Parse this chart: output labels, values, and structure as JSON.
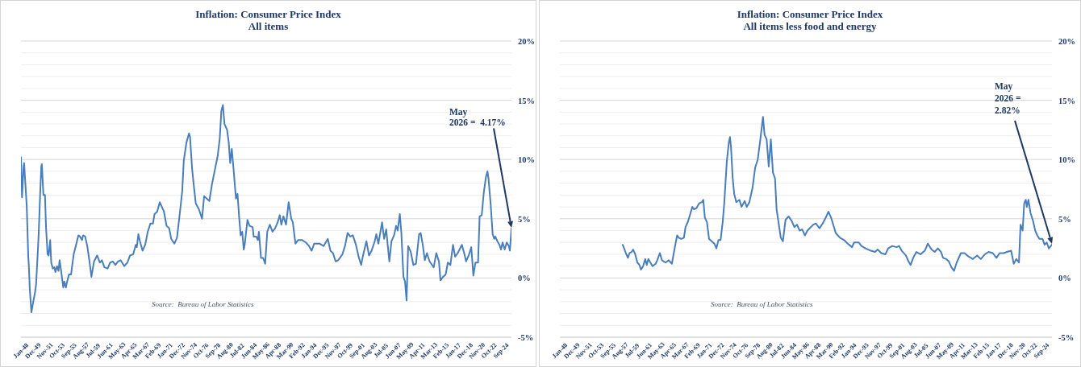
{
  "chart_data": [
    {
      "type": "line",
      "title": "Inflation: Consumer Price Index",
      "subtitle": "All items",
      "x": [
        "1948-01",
        "1948-03",
        "1948-06",
        "1948-07",
        "1948-12",
        "1949-03",
        "1949-04",
        "1949-06",
        "1949-09",
        "1950-01",
        "1950-04",
        "1950-06",
        "1950-09",
        "1950-11",
        "1951-02",
        "1951-04",
        "1951-05",
        "1951-08",
        "1951-11",
        "1952-01",
        "1952-04",
        "1952-06",
        "1952-09",
        "1952-11",
        "1953-02",
        "1953-05",
        "1953-07",
        "1953-10",
        "1954-01",
        "1954-03",
        "1954-06",
        "1954-10",
        "1954-12",
        "1955-03",
        "1955-05",
        "1955-09",
        "1956-01",
        "1956-06",
        "1956-10",
        "1957-03",
        "1957-06",
        "1957-10",
        "1957-12",
        "1958-04",
        "1958-08",
        "1958-12",
        "1959-04",
        "1959-09",
        "1960-03",
        "1960-08",
        "1960-12",
        "1961-05",
        "1961-11",
        "1962-04",
        "1962-09",
        "1963-02",
        "1963-07",
        "1963-12",
        "1964-07",
        "1965-01",
        "1965-06",
        "1965-12",
        "1966-05",
        "1966-07",
        "1966-10",
        "1967-01",
        "1967-06",
        "1967-11",
        "1968-04",
        "1968-09",
        "1969-02",
        "1969-05",
        "1969-10",
        "1970-03",
        "1970-06",
        "1970-11",
        "1971-04",
        "1971-09",
        "1972-01",
        "1972-07",
        "1972-12",
        "1973-06",
        "1973-10",
        "1974-01",
        "1974-06",
        "1974-11",
        "1975-01",
        "1975-05",
        "1975-08",
        "1975-12",
        "1976-06",
        "1976-12",
        "1977-04",
        "1977-09",
        "1978-02",
        "1978-07",
        "1978-12",
        "1979-06",
        "1979-10",
        "1980-01",
        "1980-04",
        "1980-07",
        "1980-12",
        "1981-03",
        "1981-06",
        "1981-09",
        "1981-12",
        "1982-05",
        "1982-08",
        "1982-11",
        "1983-02",
        "1983-05",
        "1983-08",
        "1983-10",
        "1984-03",
        "1984-07",
        "1985-01",
        "1985-03",
        "1985-08",
        "1985-11",
        "1986-01",
        "1986-05",
        "1986-09",
        "1987-01",
        "1987-05",
        "1987-10",
        "1988-03",
        "1988-08",
        "1989-01",
        "1989-05",
        "1989-08",
        "1989-12",
        "1990-05",
        "1990-10",
        "1991-03",
        "1991-06",
        "1991-11",
        "1992-04",
        "1992-12",
        "1993-07",
        "1994-01",
        "1994-06",
        "1994-11",
        "1995-09",
        "1996-05",
        "1997-01",
        "1997-06",
        "1997-11",
        "1998-04",
        "1998-09",
        "1999-05",
        "1999-10",
        "2000-03",
        "2000-08",
        "2001-01",
        "2001-07",
        "2001-12",
        "2002-05",
        "2002-08",
        "2003-03",
        "2003-08",
        "2004-01",
        "2004-07",
        "2004-10",
        "2005-02",
        "2005-09",
        "2006-01",
        "2006-05",
        "2006-08",
        "2006-11",
        "2007-03",
        "2007-08",
        "2007-12",
        "2008-03",
        "2008-07",
        "2008-10",
        "2009-02",
        "2009-05",
        "2009-08",
        "2009-11",
        "2010-04",
        "2010-09",
        "2011-02",
        "2011-08",
        "2011-11",
        "2012-03",
        "2012-07",
        "2012-11",
        "2013-04",
        "2013-12",
        "2014-05",
        "2014-10",
        "2015-01",
        "2015-06",
        "2015-11",
        "2016-03",
        "2016-08",
        "2017-01",
        "2017-05",
        "2017-10",
        "2018-06",
        "2018-11",
        "2019-02",
        "2019-07",
        "2019-12",
        "2020-04",
        "2020-08",
        "2021-01",
        "2021-04",
        "2021-08",
        "2021-12",
        "2022-04",
        "2022-07",
        "2022-09",
        "2023-01",
        "2023-05",
        "2023-08",
        "2023-10",
        "2024-02",
        "2024-06",
        "2024-09",
        "2024-12",
        "2025-04",
        "2025-08",
        "2025-12",
        "2026-02",
        "2026-05"
      ],
      "series": [
        {
          "color": "#4a7ebb",
          "values": [
            10.2,
            6.8,
            9.4,
            9.7,
            6.1,
            1.8,
            1.1,
            -1.0,
            -2.9,
            -1.9,
            -1.2,
            -0.5,
            2.0,
            3.8,
            7.4,
            9.4,
            9.6,
            7.0,
            7.0,
            4.3,
            2.0,
            1.9,
            3.2,
            1.3,
            0.8,
            0.9,
            0.5,
            1.0,
            0.6,
            1.5,
            0.6,
            -0.8,
            -0.3,
            -0.8,
            -0.4,
            0.3,
            0.3,
            2.0,
            2.7,
            3.6,
            3.5,
            3.2,
            3.6,
            3.5,
            2.7,
            1.5,
            0.1,
            1.4,
            1.9,
            1.3,
            1.5,
            0.9,
            0.8,
            1.3,
            1.4,
            1.1,
            1.4,
            1.5,
            1.0,
            1.3,
            1.9,
            2.0,
            2.8,
            2.6,
            3.7,
            3.1,
            2.3,
            2.8,
            3.9,
            4.6,
            4.6,
            5.4,
            5.6,
            6.4,
            6.1,
            5.6,
            4.4,
            4.2,
            3.3,
            2.9,
            3.4,
            5.7,
            7.3,
            9.9,
            11.4,
            12.2,
            11.9,
            9.2,
            7.9,
            6.3,
            5.8,
            5.0,
            6.9,
            6.7,
            6.5,
            7.9,
            9.0,
            10.3,
            11.8,
            14.1,
            14.6,
            13.0,
            12.5,
            11.5,
            9.7,
            10.9,
            9.4,
            6.7,
            7.1,
            5.2,
            3.6,
            3.9,
            2.4,
            2.9,
            4.9,
            4.4,
            4.3,
            3.5,
            3.5,
            3.2,
            3.9,
            1.7,
            1.7,
            1.2,
            3.9,
            4.5,
            3.9,
            4.2,
            4.7,
            5.3,
            4.5,
            5.2,
            4.5,
            6.4,
            5.0,
            4.7,
            2.9,
            3.2,
            3.2,
            3.0,
            2.7,
            2.3,
            2.9,
            2.9,
            2.7,
            3.3,
            2.3,
            2.1,
            1.4,
            1.5,
            2.0,
            2.7,
            3.8,
            3.5,
            3.6,
            2.8,
            1.8,
            1.1,
            1.8,
            3.1,
            1.9,
            2.3,
            3.1,
            3.7,
            2.9,
            4.7,
            3.3,
            4.1,
            2.7,
            1.4,
            3.1,
            3.6,
            4.4,
            4.0,
            5.4,
            3.8,
            0.1,
            -0.3,
            -1.9,
            2.7,
            2.2,
            1.1,
            1.2,
            3.7,
            3.8,
            2.8,
            1.5,
            2.1,
            1.4,
            0.9,
            2.1,
            1.4,
            -0.2,
            0.1,
            0.3,
            1.3,
            1.1,
            2.8,
            1.8,
            2.1,
            2.8,
            2.0,
            1.4,
            1.9,
            2.6,
            0.2,
            1.3,
            1.3,
            5.2,
            5.3,
            7.2,
            8.5,
            9.0,
            8.4,
            6.3,
            3.7,
            3.3,
            3.5,
            3.1,
            2.8,
            2.4,
            3.0,
            2.4,
            3.0,
            2.7,
            2.3,
            4.17
          ]
        }
      ],
      "xlim": [
        "1948-01",
        "2026-05"
      ],
      "xticks": [
        {
          "value": "1948-01",
          "label": "Jan-48"
        },
        {
          "value": "1949-12",
          "label": "Dec-49"
        },
        {
          "value": "1951-11",
          "label": "Nov-51"
        },
        {
          "value": "1953-10",
          "label": "Oct-53"
        },
        {
          "value": "1955-09",
          "label": "Sep-55"
        },
        {
          "value": "1957-08",
          "label": "Aug-57"
        },
        {
          "value": "1959-07",
          "label": "Jul-59"
        },
        {
          "value": "1961-06",
          "label": "Jun-61"
        },
        {
          "value": "1963-05",
          "label": "May-63"
        },
        {
          "value": "1965-04",
          "label": "Apr-65"
        },
        {
          "value": "1967-03",
          "label": "Mar-67"
        },
        {
          "value": "1969-02",
          "label": "Feb-69"
        },
        {
          "value": "1971-01",
          "label": "Jan-71"
        },
        {
          "value": "1972-12",
          "label": "Dec-72"
        },
        {
          "value": "1974-11",
          "label": "Nov-74"
        },
        {
          "value": "1976-10",
          "label": "Oct-76"
        },
        {
          "value": "1978-09",
          "label": "Sep-78"
        },
        {
          "value": "1980-08",
          "label": "Aug-80"
        },
        {
          "value": "1982-07",
          "label": "Jul-82"
        },
        {
          "value": "1984-06",
          "label": "Jun-84"
        },
        {
          "value": "1986-05",
          "label": "May-86"
        },
        {
          "value": "1988-04",
          "label": "Apr-88"
        },
        {
          "value": "1990-03",
          "label": "Mar-90"
        },
        {
          "value": "1992-02",
          "label": "Feb-92"
        },
        {
          "value": "1994-01",
          "label": "Jan-94"
        },
        {
          "value": "1995-12",
          "label": "Dec-95"
        },
        {
          "value": "1997-11",
          "label": "Nov-97"
        },
        {
          "value": "1999-10",
          "label": "Oct-99"
        },
        {
          "value": "2001-09",
          "label": "Sep-01"
        },
        {
          "value": "2003-08",
          "label": "Aug-03"
        },
        {
          "value": "2005-07",
          "label": "Jul-05"
        },
        {
          "value": "2007-06",
          "label": "Jun-07"
        },
        {
          "value": "2009-05",
          "label": "May-09"
        },
        {
          "value": "2011-04",
          "label": "Apr-11"
        },
        {
          "value": "2013-03",
          "label": "Mar-13"
        },
        {
          "value": "2015-02",
          "label": "Feb-15"
        },
        {
          "value": "2017-01",
          "label": "Jan-17"
        },
        {
          "value": "2018-12",
          "label": "Dec-18"
        },
        {
          "value": "2020-11",
          "label": "Nov-20"
        },
        {
          "value": "2022-10",
          "label": "Oct-22"
        },
        {
          "value": "2024-09",
          "label": "Sep-24"
        }
      ],
      "ylim": [
        -5,
        20
      ],
      "yticks": [
        {
          "value": -5,
          "label": "-5%"
        },
        {
          "value": -4,
          "label": null
        },
        {
          "value": -3,
          "label": null
        },
        {
          "value": -2,
          "label": null
        },
        {
          "value": -1,
          "label": null
        },
        {
          "value": 0,
          "label": "0%"
        },
        {
          "value": 1,
          "label": null
        },
        {
          "value": 2,
          "label": null
        },
        {
          "value": 3,
          "label": null
        },
        {
          "value": 4,
          "label": null
        },
        {
          "value": 5,
          "label": "5%"
        },
        {
          "value": 6,
          "label": null
        },
        {
          "value": 7,
          "label": null
        },
        {
          "value": 8,
          "label": null
        },
        {
          "value": 9,
          "label": null
        },
        {
          "value": 10,
          "label": "10%"
        },
        {
          "value": 11,
          "label": null
        },
        {
          "value": 12,
          "label": null
        },
        {
          "value": 13,
          "label": null
        },
        {
          "value": 14,
          "label": null
        },
        {
          "value": 15,
          "label": "15%"
        },
        {
          "value": 16,
          "label": null
        },
        {
          "value": 17,
          "label": null
        },
        {
          "value": 18,
          "label": null
        },
        {
          "value": 19,
          "label": null
        },
        {
          "value": 20,
          "label": "20%"
        }
      ],
      "grid": "y",
      "annotations": [
        {
          "text": "May\n2026 =  4.17%",
          "x": "2026-05",
          "y": 4.17
        },
        "Source:  Bureau of Labor Statistics"
      ]
    },
    {
      "type": "line",
      "title": "Inflation: Consumer Price Index",
      "subtitle": "All items less food and energy",
      "x": [
        "1958-01",
        "1958-03",
        "1958-07",
        "1958-11",
        "1959-02",
        "1959-06",
        "1959-09",
        "1960-01",
        "1960-05",
        "1960-09",
        "1960-12",
        "1961-04",
        "1961-08",
        "1961-11",
        "1962-02",
        "1962-06",
        "1962-10",
        "1963-04",
        "1963-07",
        "1963-12",
        "1964-04",
        "1964-11",
        "1965-05",
        "1965-11",
        "1966-03",
        "1966-09",
        "1966-12",
        "1967-05",
        "1967-10",
        "1968-01",
        "1968-06",
        "1968-10",
        "1969-02",
        "1969-05",
        "1969-10",
        "1970-03",
        "1970-08",
        "1970-11",
        "1971-02",
        "1971-06",
        "1971-10",
        "1972-03",
        "1972-08",
        "1972-12",
        "1973-04",
        "1973-08",
        "1973-12",
        "1974-03",
        "1974-08",
        "1974-12",
        "1975-02",
        "1975-04",
        "1975-07",
        "1975-10",
        "1976-02",
        "1976-08",
        "1976-12",
        "1977-06",
        "1977-10",
        "1978-03",
        "1978-09",
        "1979-02",
        "1979-07",
        "1979-12",
        "1980-05",
        "1980-08",
        "1980-12",
        "1981-04",
        "1981-08",
        "1981-12",
        "1982-04",
        "1982-07",
        "1982-11",
        "1983-03",
        "1983-07",
        "1983-12",
        "1984-06",
        "1984-12",
        "1985-05",
        "1985-10",
        "1986-03",
        "1986-08",
        "1987-01",
        "1987-06",
        "1988-05",
        "1988-10",
        "1989-05",
        "1989-11",
        "1990-05",
        "1990-10",
        "1991-03",
        "1991-12",
        "1992-08",
        "1993-04",
        "1993-11",
        "1994-07",
        "1994-11",
        "1995-08",
        "1996-01",
        "1996-09",
        "1997-07",
        "1998-03",
        "1998-08",
        "1999-03",
        "1999-11",
        "2000-04",
        "2000-12",
        "2001-08",
        "2002-01",
        "2002-06",
        "2003-02",
        "2003-07",
        "2003-11",
        "2004-04",
        "2004-10",
        "2005-06",
        "2006-02",
        "2006-08",
        "2007-03",
        "2007-09",
        "2008-03",
        "2008-09",
        "2009-01",
        "2009-07",
        "2009-12",
        "2010-05",
        "2010-10",
        "2011-03",
        "2011-11",
        "2012-06",
        "2013-02",
        "2013-10",
        "2014-06",
        "2015-01",
        "2015-09",
        "2016-04",
        "2016-12",
        "2017-07",
        "2018-01",
        "2018-09",
        "2019-03",
        "2019-11",
        "2020-04",
        "2020-09",
        "2021-02",
        "2021-05",
        "2021-09",
        "2021-12",
        "2022-03",
        "2022-05",
        "2022-08",
        "2022-12",
        "2023-05",
        "2023-09",
        "2024-01",
        "2024-05",
        "2024-11",
        "2025-03",
        "2025-07",
        "2025-11",
        "2026-05"
      ],
      "series": [
        {
          "color": "#4a7ebb",
          "values": [
            2.8,
            2.6,
            2.1,
            1.7,
            2.1,
            2.2,
            2.4,
            2.0,
            1.3,
            1.1,
            0.7,
            1.0,
            1.6,
            1.1,
            1.6,
            1.3,
            1.0,
            1.2,
            1.5,
            2.1,
            1.5,
            1.3,
            1.5,
            1.2,
            2.2,
            3.6,
            3.4,
            3.3,
            3.4,
            4.3,
            4.8,
            5.4,
            6.0,
            5.8,
            5.9,
            6.3,
            6.4,
            6.6,
            5.1,
            4.7,
            3.3,
            3.1,
            2.9,
            2.5,
            3.2,
            3.2,
            4.7,
            6.3,
            9.9,
            11.5,
            11.9,
            11.0,
            8.5,
            7.1,
            6.4,
            6.6,
            6.0,
            6.5,
            6.0,
            6.4,
            7.6,
            9.3,
            10.0,
            11.7,
            13.6,
            12.1,
            11.7,
            9.4,
            11.7,
            8.9,
            8.4,
            5.8,
            4.6,
            3.4,
            3.1,
            4.9,
            5.2,
            4.8,
            4.3,
            4.5,
            4.0,
            4.1,
            3.6,
            4.0,
            4.5,
            4.6,
            4.2,
            4.6,
            5.1,
            5.6,
            5.1,
            3.8,
            3.4,
            3.2,
            2.9,
            2.6,
            3.0,
            3.0,
            2.7,
            2.5,
            2.3,
            2.2,
            2.4,
            2.1,
            2.0,
            2.5,
            2.7,
            2.6,
            2.7,
            2.3,
            1.9,
            1.4,
            1.1,
            1.7,
            2.2,
            2.0,
            2.3,
            2.9,
            2.4,
            2.2,
            2.5,
            2.2,
            1.7,
            1.6,
            1.4,
            0.9,
            0.6,
            1.3,
            2.1,
            2.1,
            1.8,
            1.6,
            1.9,
            1.6,
            2.0,
            2.2,
            2.1,
            1.7,
            2.1,
            2.1,
            2.2,
            2.3,
            1.2,
            1.6,
            1.3,
            4.5,
            4.0,
            6.3,
            6.6,
            6.0,
            6.6,
            5.5,
            4.8,
            4.0,
            3.6,
            3.3,
            3.3,
            2.8,
            3.0,
            2.5,
            2.82
          ]
        }
      ],
      "xlim": [
        "1948-01",
        "2026-05"
      ],
      "xticks": [
        {
          "value": "1948-01",
          "label": "Jan-48"
        },
        {
          "value": "1949-12",
          "label": "Dec-49"
        },
        {
          "value": "1951-11",
          "label": "Nov-51"
        },
        {
          "value": "1953-10",
          "label": "Oct-53"
        },
        {
          "value": "1955-09",
          "label": "Sep-55"
        },
        {
          "value": "1957-08",
          "label": "Aug-57"
        },
        {
          "value": "1959-07",
          "label": "Jul-59"
        },
        {
          "value": "1961-06",
          "label": "Jun-61"
        },
        {
          "value": "1963-05",
          "label": "May-63"
        },
        {
          "value": "1965-04",
          "label": "Apr-65"
        },
        {
          "value": "1967-03",
          "label": "Mar-67"
        },
        {
          "value": "1969-02",
          "label": "Feb-69"
        },
        {
          "value": "1971-01",
          "label": "Jan-71"
        },
        {
          "value": "1972-12",
          "label": "Dec-72"
        },
        {
          "value": "1974-11",
          "label": "Nov-74"
        },
        {
          "value": "1976-10",
          "label": "Oct-76"
        },
        {
          "value": "1978-09",
          "label": "Sep-78"
        },
        {
          "value": "1980-08",
          "label": "Aug-80"
        },
        {
          "value": "1982-07",
          "label": "Jul-82"
        },
        {
          "value": "1984-06",
          "label": "Jun-84"
        },
        {
          "value": "1986-05",
          "label": "May-86"
        },
        {
          "value": "1988-04",
          "label": "Apr-88"
        },
        {
          "value": "1990-03",
          "label": "Mar-90"
        },
        {
          "value": "1992-02",
          "label": "Feb-92"
        },
        {
          "value": "1994-01",
          "label": "Jan-94"
        },
        {
          "value": "1995-12",
          "label": "Dec-95"
        },
        {
          "value": "1997-11",
          "label": "Nov-97"
        },
        {
          "value": "1999-10",
          "label": "Oct-99"
        },
        {
          "value": "2001-09",
          "label": "Sep-01"
        },
        {
          "value": "2003-08",
          "label": "Aug-03"
        },
        {
          "value": "2005-07",
          "label": "Jul-05"
        },
        {
          "value": "2007-06",
          "label": "Jun-07"
        },
        {
          "value": "2009-05",
          "label": "May-09"
        },
        {
          "value": "2011-04",
          "label": "Apr-11"
        },
        {
          "value": "2013-03",
          "label": "Mar-13"
        },
        {
          "value": "2015-02",
          "label": "Feb-15"
        },
        {
          "value": "2017-01",
          "label": "Jan-17"
        },
        {
          "value": "2018-12",
          "label": "Dec-18"
        },
        {
          "value": "2020-11",
          "label": "Nov-20"
        },
        {
          "value": "2022-10",
          "label": "Oct-22"
        },
        {
          "value": "2024-09",
          "label": "Sep-24"
        }
      ],
      "ylim": [
        -5,
        20
      ],
      "yticks": [
        {
          "value": -5,
          "label": "-5%"
        },
        {
          "value": -4,
          "label": null
        },
        {
          "value": -3,
          "label": null
        },
        {
          "value": -2,
          "label": null
        },
        {
          "value": -1,
          "label": null
        },
        {
          "value": 0,
          "label": "0%"
        },
        {
          "value": 1,
          "label": null
        },
        {
          "value": 2,
          "label": null
        },
        {
          "value": 3,
          "label": null
        },
        {
          "value": 4,
          "label": null
        },
        {
          "value": 5,
          "label": "5%"
        },
        {
          "value": 6,
          "label": null
        },
        {
          "value": 7,
          "label": null
        },
        {
          "value": 8,
          "label": null
        },
        {
          "value": 9,
          "label": null
        },
        {
          "value": 10,
          "label": "10%"
        },
        {
          "value": 11,
          "label": null
        },
        {
          "value": 12,
          "label": null
        },
        {
          "value": 13,
          "label": null
        },
        {
          "value": 14,
          "label": null
        },
        {
          "value": 15,
          "label": "15%"
        },
        {
          "value": 16,
          "label": null
        },
        {
          "value": 17,
          "label": null
        },
        {
          "value": 18,
          "label": null
        },
        {
          "value": 19,
          "label": null
        },
        {
          "value": 20,
          "label": "20%"
        }
      ],
      "grid": "y",
      "annotations": [
        {
          "text": "May\n2026 =\n2.82%",
          "x": "2026-05",
          "y": 2.82
        },
        "Source:  Bureau of Labor Statistics"
      ]
    }
  ]
}
